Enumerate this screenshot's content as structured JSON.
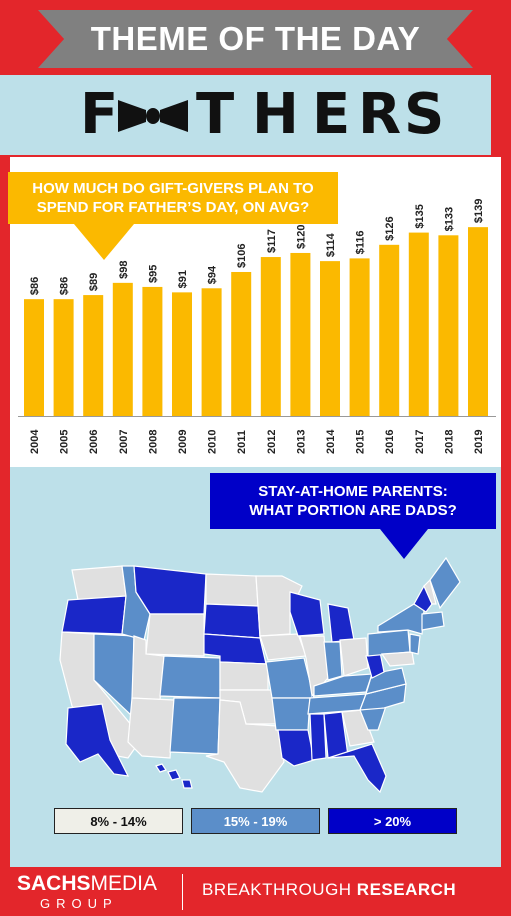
{
  "banner": {
    "title": "THEME OF THE DAY"
  },
  "hero": {
    "letters": [
      "F",
      "T",
      "H",
      "E",
      "R",
      "S"
    ],
    "bowtie_icon": "bowtie-icon"
  },
  "callout_spending": {
    "line1": "HOW MUCH DO GIFT-GIVERS PLAN TO",
    "line2": "SPEND FOR FATHER’S DAY, ON AVG?"
  },
  "chart_data": {
    "type": "bar",
    "title": "HOW MUCH DO GIFT-GIVERS PLAN TO SPEND FOR FATHER’S DAY, ON AVG?",
    "categories": [
      "2004",
      "2005",
      "2006",
      "2007",
      "2008",
      "2009",
      "2010",
      "2011",
      "2012",
      "2013",
      "2014",
      "2015",
      "2016",
      "2017",
      "2018",
      "2019"
    ],
    "values": [
      86,
      86,
      89,
      98,
      95,
      91,
      94,
      106,
      117,
      120,
      114,
      116,
      126,
      135,
      133,
      139
    ],
    "value_labels": [
      "$86",
      "$86",
      "$89",
      "$98",
      "$95",
      "$91",
      "$94",
      "$106",
      "$117",
      "$120",
      "$114",
      "$116",
      "$126",
      "$135",
      "$133",
      "$139"
    ],
    "bar_color": "#fbb900",
    "ylim": [
      0,
      145
    ],
    "grid": false,
    "xlabel": "",
    "ylabel": ""
  },
  "callout_map": {
    "line1": "STAY-AT-HOME PARENTS:",
    "line2": "WHAT PORTION ARE DADS?"
  },
  "map": {
    "icon": "us-states-map",
    "colors": {
      "low": "#e0e0e0",
      "mid": "#5b8ec9",
      "high": "#1a27c8"
    }
  },
  "legend": [
    {
      "label": "8% - 14%",
      "color": "#efefe8",
      "text_color": "#111111"
    },
    {
      "label": "15% - 19%",
      "color": "#5b8ec9",
      "text_color": "#ffffff"
    },
    {
      "label": "> 20%",
      "color": "#0000c8",
      "text_color": "#ffffff"
    }
  ],
  "footer": {
    "brand_bold": "SACHS",
    "brand_thin": "MEDIA",
    "brand_sub": "GROUP",
    "tagline_thin": "BREAKTHROUGH ",
    "tagline_bold": "RESEARCH"
  }
}
